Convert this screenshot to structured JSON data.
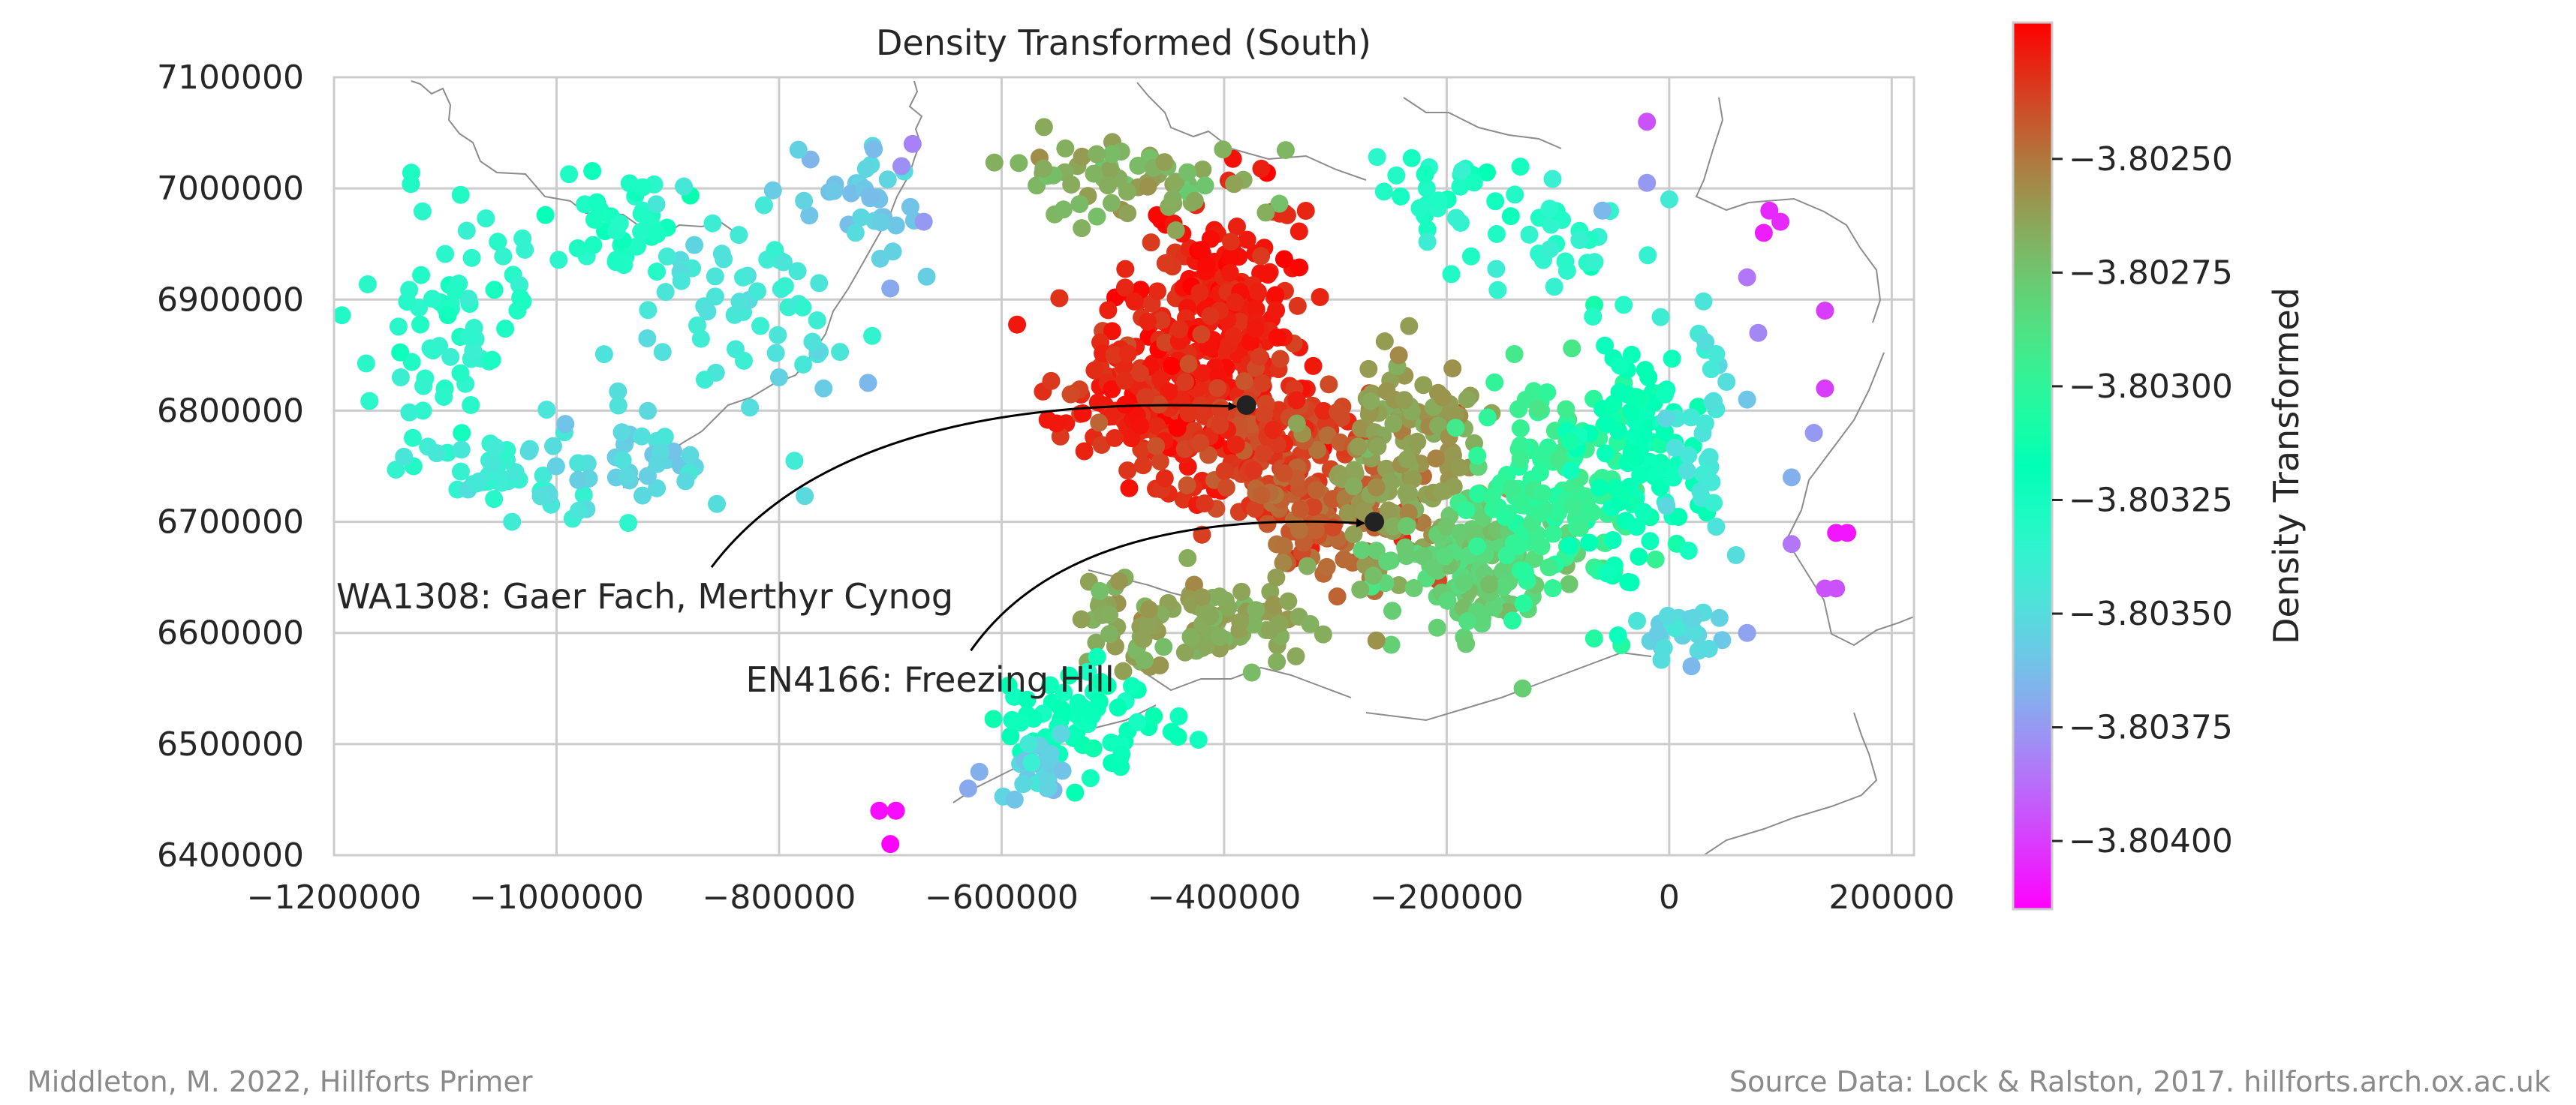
{
  "chart_data": {
    "type": "scatter",
    "title": "Density Transformed (South)",
    "xlabel": "",
    "ylabel": "",
    "xlim": [
      -1200000,
      220000
    ],
    "ylim": [
      6400000,
      7100000
    ],
    "x_ticks": [
      -1200000,
      -1000000,
      -800000,
      -600000,
      -400000,
      -200000,
      0,
      200000
    ],
    "x_tick_labels": [
      "−1200000",
      "−1000000",
      "−800000",
      "−600000",
      "−400000",
      "−200000",
      "0",
      "200000"
    ],
    "y_ticks": [
      6400000,
      6500000,
      6600000,
      6700000,
      6800000,
      6900000,
      7000000,
      7100000
    ],
    "y_tick_labels": [
      "6400000",
      "6500000",
      "6600000",
      "6700000",
      "6800000",
      "6900000",
      "7000000",
      "7100000"
    ],
    "grid": true,
    "colormap": "rainbow",
    "colorbar": {
      "label": "Density Transformed",
      "vmin": -3.80415,
      "vmax": -3.8022,
      "ticks": [
        -3.8025,
        -3.80275,
        -3.803,
        -3.80325,
        -3.8035,
        -3.80375,
        -3.804
      ],
      "tick_labels": [
        "−3.80250",
        "−3.80275",
        "−3.80300",
        "−3.80325",
        "−3.80350",
        "−3.80375",
        "−3.80400"
      ]
    },
    "annotations": [
      {
        "text": "WA1308: Gaer Fach, Merthyr Cynog",
        "point": [
          -380000,
          6805000
        ],
        "text_at": [
          -1198000,
          6622000
        ]
      },
      {
        "text": "EN4166: Freezing Hill",
        "point": [
          -265000,
          6700000
        ],
        "text_at": [
          -830000,
          6547000
        ]
      }
    ],
    "regions": [
      {
        "center": [
          -400000,
          6880000
        ],
        "spread": [
          60000,
          90000
        ],
        "count": 260,
        "value": -3.80227
      },
      {
        "center": [
          -470000,
          6810000
        ],
        "spread": [
          70000,
          60000
        ],
        "count": 170,
        "value": -3.8023
      },
      {
        "center": [
          -360000,
          6770000
        ],
        "spread": [
          80000,
          60000
        ],
        "count": 160,
        "value": -3.80236
      },
      {
        "center": [
          -300000,
          6710000
        ],
        "spread": [
          60000,
          50000
        ],
        "count": 110,
        "value": -3.80245
      },
      {
        "center": [
          -240000,
          6760000
        ],
        "spread": [
          60000,
          80000
        ],
        "count": 140,
        "value": -3.80262
      },
      {
        "center": [
          -180000,
          6660000
        ],
        "spread": [
          60000,
          50000
        ],
        "count": 140,
        "value": -3.80278
      },
      {
        "center": [
          -110000,
          6720000
        ],
        "spread": [
          60000,
          90000
        ],
        "count": 140,
        "value": -3.80298
      },
      {
        "center": [
          -30000,
          6760000
        ],
        "spread": [
          50000,
          90000
        ],
        "count": 100,
        "value": -3.80318
      },
      {
        "center": [
          -480000,
          7010000
        ],
        "spread": [
          90000,
          30000
        ],
        "count": 70,
        "value": -3.80268
      },
      {
        "center": [
          -420000,
          6610000
        ],
        "spread": [
          100000,
          40000
        ],
        "count": 120,
        "value": -3.80265
      },
      {
        "center": [
          -530000,
          6520000
        ],
        "spread": [
          60000,
          40000
        ],
        "count": 70,
        "value": -3.8032
      },
      {
        "center": [
          -570000,
          6470000
        ],
        "spread": [
          25000,
          25000
        ],
        "count": 25,
        "value": -3.80355
      },
      {
        "center": [
          -200000,
          6990000
        ],
        "spread": [
          60000,
          40000
        ],
        "count": 30,
        "value": -3.8033
      },
      {
        "center": [
          -90000,
          6960000
        ],
        "spread": [
          60000,
          50000
        ],
        "count": 30,
        "value": -3.80335
      },
      {
        "center": [
          30000,
          6800000
        ],
        "spread": [
          30000,
          80000
        ],
        "count": 30,
        "value": -3.80345
      },
      {
        "center": [
          10000,
          6600000
        ],
        "spread": [
          40000,
          20000
        ],
        "count": 25,
        "value": -3.80352
      },
      {
        "center": [
          -1100000,
          6880000
        ],
        "spread": [
          60000,
          90000
        ],
        "count": 70,
        "value": -3.80332
      },
      {
        "center": [
          -950000,
          6960000
        ],
        "spread": [
          50000,
          40000
        ],
        "count": 40,
        "value": -3.80328
      },
      {
        "center": [
          -830000,
          6890000
        ],
        "spread": [
          80000,
          90000
        ],
        "count": 60,
        "value": -3.80345
      },
      {
        "center": [
          -1050000,
          6740000
        ],
        "spread": [
          60000,
          30000
        ],
        "count": 40,
        "value": -3.8034
      },
      {
        "center": [
          -930000,
          6760000
        ],
        "spread": [
          80000,
          40000
        ],
        "count": 40,
        "value": -3.80352
      },
      {
        "center": [
          -720000,
          6990000
        ],
        "spread": [
          60000,
          50000
        ],
        "count": 35,
        "value": -3.80358
      }
    ],
    "points": [
      {
        "x": -380000,
        "y": 6805000,
        "value": -3.80227
      },
      {
        "x": -265000,
        "y": 6700000,
        "value": -3.8024
      },
      {
        "x": -1120000,
        "y": 6800000,
        "value": -3.80335
      },
      {
        "x": -1140000,
        "y": 6830000,
        "value": -3.8034
      },
      {
        "x": -1040000,
        "y": 6700000,
        "value": -3.80342
      },
      {
        "x": -980000,
        "y": 6710000,
        "value": -3.80346
      },
      {
        "x": -880000,
        "y": 6760000,
        "value": -3.80352
      },
      {
        "x": -760000,
        "y": 6820000,
        "value": -3.80358
      },
      {
        "x": -800000,
        "y": 6830000,
        "value": -3.80355
      },
      {
        "x": -720000,
        "y": 6825000,
        "value": -3.80365
      },
      {
        "x": -680000,
        "y": 7040000,
        "value": -3.80382
      },
      {
        "x": -690000,
        "y": 7020000,
        "value": -3.80378
      },
      {
        "x": -670000,
        "y": 6970000,
        "value": -3.80375
      },
      {
        "x": -700000,
        "y": 6910000,
        "value": -3.8037
      },
      {
        "x": -700000,
        "y": 6410000,
        "value": -3.80415
      },
      {
        "x": -710000,
        "y": 6440000,
        "value": -3.80412
      },
      {
        "x": -695000,
        "y": 6440000,
        "value": -3.80412
      },
      {
        "x": -630000,
        "y": 6460000,
        "value": -3.8037
      },
      {
        "x": -620000,
        "y": 6475000,
        "value": -3.80368
      },
      {
        "x": -20000,
        "y": 7060000,
        "value": -3.80395
      },
      {
        "x": -20000,
        "y": 7005000,
        "value": -3.80375
      },
      {
        "x": -60000,
        "y": 6980000,
        "value": -3.80365
      },
      {
        "x": 90000,
        "y": 6980000,
        "value": -3.80405
      },
      {
        "x": 100000,
        "y": 6970000,
        "value": -3.80405
      },
      {
        "x": 85000,
        "y": 6960000,
        "value": -3.80408
      },
      {
        "x": 70000,
        "y": 6920000,
        "value": -3.80385
      },
      {
        "x": 140000,
        "y": 6890000,
        "value": -3.804
      },
      {
        "x": 80000,
        "y": 6870000,
        "value": -3.8038
      },
      {
        "x": 140000,
        "y": 6820000,
        "value": -3.804
      },
      {
        "x": 130000,
        "y": 6780000,
        "value": -3.80375
      },
      {
        "x": 70000,
        "y": 6810000,
        "value": -3.8036
      },
      {
        "x": 110000,
        "y": 6740000,
        "value": -3.80368
      },
      {
        "x": 110000,
        "y": 6680000,
        "value": -3.80385
      },
      {
        "x": 150000,
        "y": 6690000,
        "value": -3.8041
      },
      {
        "x": 160000,
        "y": 6690000,
        "value": -3.8041
      },
      {
        "x": 140000,
        "y": 6640000,
        "value": -3.80395
      },
      {
        "x": 150000,
        "y": 6640000,
        "value": -3.80395
      },
      {
        "x": 70000,
        "y": 6600000,
        "value": -3.80372
      },
      {
        "x": 60000,
        "y": 6670000,
        "value": -3.8035
      },
      {
        "x": 20000,
        "y": 6570000,
        "value": -3.80365
      }
    ]
  },
  "credits": {
    "left": "Middleton, M. 2022, Hillforts Primer",
    "right": "Source Data: Lock & Ralston, 2017. hillforts.arch.ox.ac.uk"
  }
}
